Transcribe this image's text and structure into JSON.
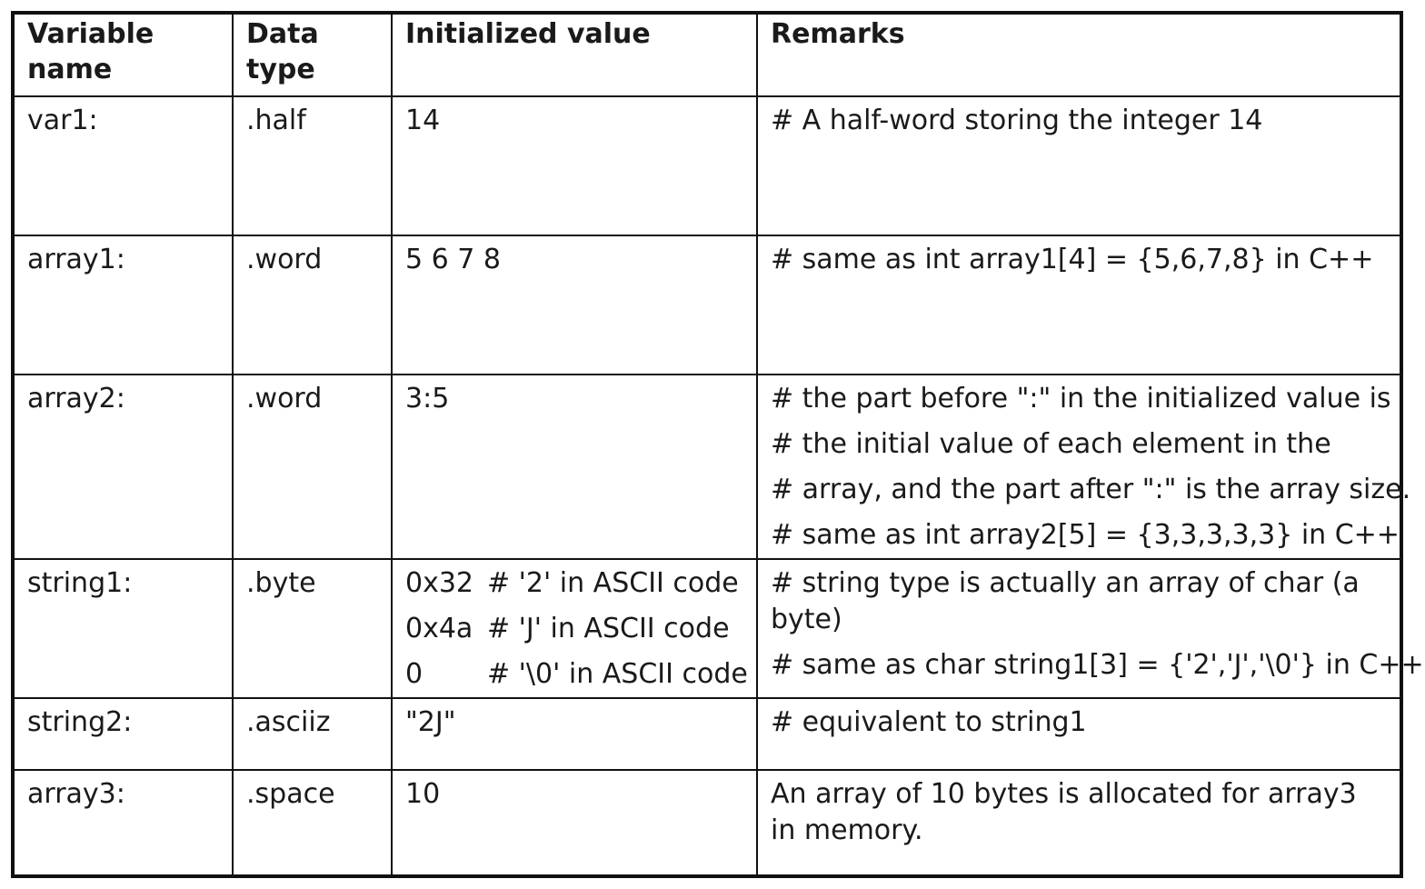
{
  "headers": {
    "variable_name": "Variable\nname",
    "variable_name_lines": [
      "Variable",
      "name"
    ],
    "data_type_lines": [
      "Data",
      "type"
    ],
    "initialized_value": "Initialized value",
    "remarks": "Remarks"
  },
  "rows": [
    {
      "name": "var1:",
      "type": ".half",
      "value": "14",
      "remarks": [
        "# A half-word storing the integer 14"
      ]
    },
    {
      "name": "array1:",
      "type": ".word",
      "value": "5 6 7 8",
      "remarks": [
        "# same as int array1[4] = {5,6,7,8} in C++"
      ]
    },
    {
      "name": "array2:",
      "type": ".word",
      "value": "3:5",
      "remarks": [
        "# the part before \":\" in the initialized value is",
        "# the initial value of each element in the",
        "# array, and the part after \":\" is the array size.",
        "# same as int array2[5] = {3,3,3,3,3} in C++"
      ]
    },
    {
      "name": "string1:",
      "type": ".byte",
      "values": [
        {
          "val": "0x32",
          "comment": "# '2' in ASCII code"
        },
        {
          "val": "0x4a",
          "comment": "# 'J' in ASCII code"
        },
        {
          "val": "0",
          "comment": "# '\\0' in ASCII code"
        }
      ],
      "remarks": [
        "# string type is actually an array of char (a byte)",
        "# same as char string1[3] = {'2','J','\\0'} in C++"
      ]
    },
    {
      "name": "string2:",
      "type": ".asciiz",
      "value": "\"2J\"",
      "remarks": [
        "# equivalent to string1"
      ]
    },
    {
      "name": "array3:",
      "type": ".space",
      "value": "10",
      "remarks": [
        "An array of 10 bytes is allocated for array3 in memory."
      ]
    }
  ]
}
